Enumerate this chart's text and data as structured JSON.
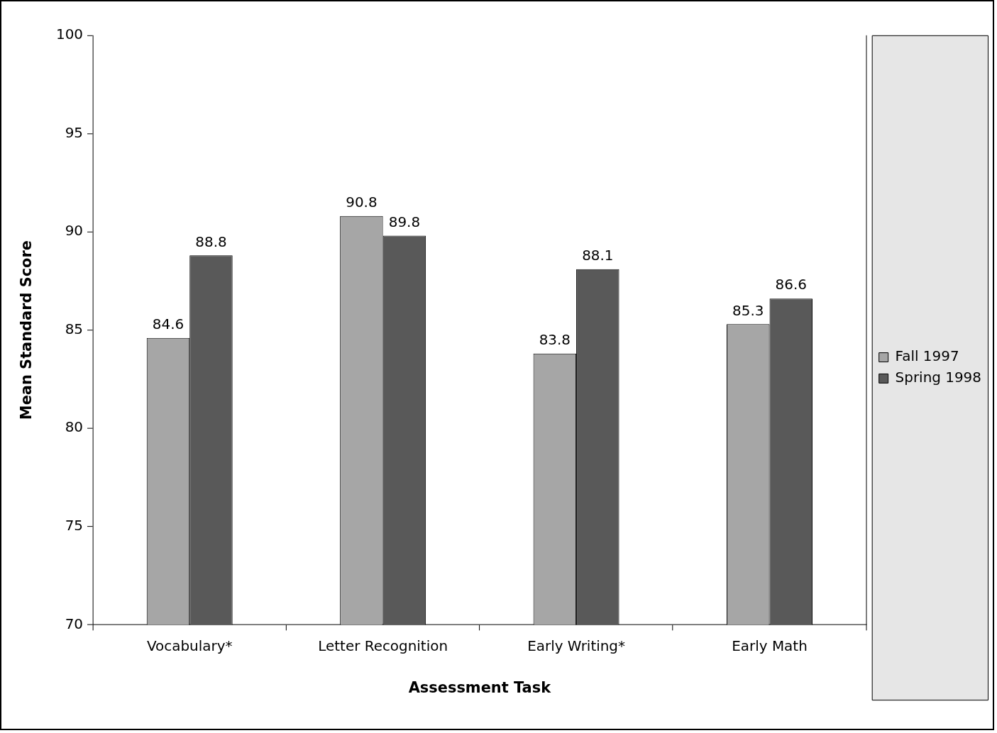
{
  "chart_data": {
    "type": "bar",
    "xlabel": "Assessment Task",
    "ylabel": "Mean Standard Score",
    "categories": [
      "Vocabulary*",
      "Letter Recognition",
      "Early Writing*",
      "Early Math"
    ],
    "series": [
      {
        "name": "Fall 1997",
        "color": "#a6a6a6",
        "values": [
          84.6,
          90.8,
          83.8,
          85.3
        ]
      },
      {
        "name": "Spring 1998",
        "color": "#595959",
        "values": [
          88.8,
          89.8,
          88.1,
          86.6
        ]
      }
    ],
    "ylim": [
      70,
      100
    ],
    "yticks": [
      70,
      75,
      80,
      85,
      90,
      95,
      100
    ],
    "grid": false,
    "legend": "right",
    "data_labels": true
  }
}
